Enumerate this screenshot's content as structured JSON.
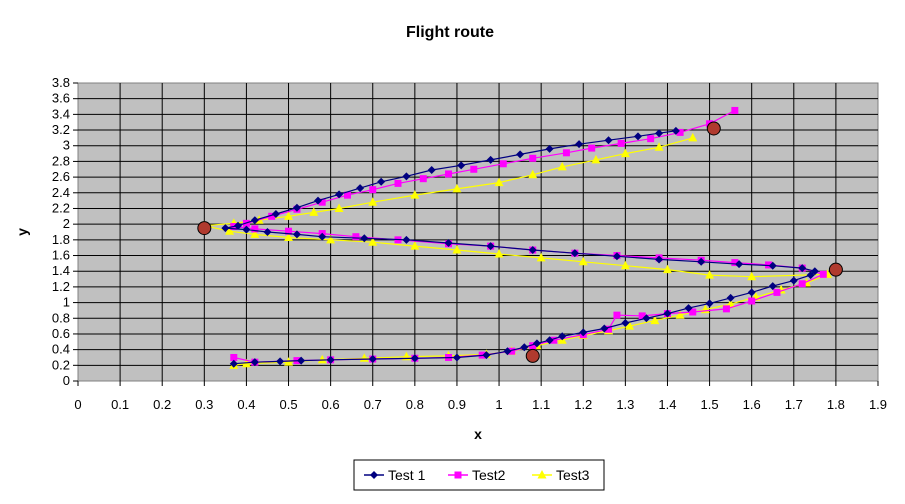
{
  "chart_data": {
    "type": "line",
    "title": "Flight route",
    "xlabel": "x",
    "ylabel": "y",
    "xlim": [
      0,
      1.9
    ],
    "ylim": [
      0,
      3.8
    ],
    "xticks": [
      "0",
      "0.1",
      "0.2",
      "0.3",
      "0.4",
      "0.5",
      "0.6",
      "0.7",
      "0.8",
      "0.9",
      "1",
      "1.1",
      "1.2",
      "1.3",
      "1.4",
      "1.5",
      "1.6",
      "1.7",
      "1.8",
      "1.9"
    ],
    "yticks": [
      "0",
      "0.2",
      "0.4",
      "0.6",
      "0.8",
      "1",
      "1.2",
      "1.4",
      "1.6",
      "1.8",
      "2",
      "2.2",
      "2.4",
      "2.6",
      "2.8",
      "3",
      "3.2",
      "3.4",
      "3.6",
      "3.8"
    ],
    "grid": true,
    "legend_position": "bottom",
    "colors": {
      "plot_background": "#c0c0c0",
      "gridline": "#000000",
      "test1": "#000080",
      "test2": "#ff00ff",
      "test3": "#ffff00",
      "waypoint_fill": "#b03a2e"
    },
    "series": [
      {
        "name": "Test 1",
        "marker": "diamond",
        "x": [
          0.37,
          0.42,
          0.48,
          0.53,
          0.6,
          0.7,
          0.8,
          0.9,
          0.97,
          1.02,
          1.06,
          1.09,
          1.12,
          1.15,
          1.2,
          1.25,
          1.3,
          1.35,
          1.4,
          1.45,
          1.5,
          1.55,
          1.6,
          1.65,
          1.7,
          1.74,
          1.75,
          1.72,
          1.65,
          1.57,
          1.48,
          1.38,
          1.28,
          1.18,
          1.08,
          0.98,
          0.88,
          0.78,
          0.68,
          0.58,
          0.52,
          0.45,
          0.4,
          0.35,
          0.38,
          0.42,
          0.47,
          0.52,
          0.57,
          0.62,
          0.67,
          0.72,
          0.78,
          0.84,
          0.91,
          0.98,
          1.05,
          1.12,
          1.19,
          1.26,
          1.33,
          1.38,
          1.42
        ],
        "y": [
          0.22,
          0.24,
          0.25,
          0.26,
          0.27,
          0.28,
          0.29,
          0.3,
          0.33,
          0.38,
          0.43,
          0.48,
          0.52,
          0.57,
          0.62,
          0.67,
          0.74,
          0.8,
          0.86,
          0.93,
          0.99,
          1.06,
          1.13,
          1.21,
          1.28,
          1.35,
          1.4,
          1.44,
          1.47,
          1.49,
          1.52,
          1.55,
          1.59,
          1.63,
          1.67,
          1.72,
          1.76,
          1.8,
          1.82,
          1.84,
          1.87,
          1.9,
          1.93,
          1.95,
          1.98,
          2.05,
          2.13,
          2.21,
          2.3,
          2.38,
          2.46,
          2.54,
          2.61,
          2.69,
          2.75,
          2.82,
          2.89,
          2.96,
          3.02,
          3.07,
          3.12,
          3.16,
          3.19
        ]
      },
      {
        "name": "Test2",
        "marker": "square",
        "x": [
          0.37,
          0.42,
          0.52,
          0.6,
          0.7,
          0.8,
          0.88,
          0.96,
          1.03,
          1.08,
          1.13,
          1.2,
          1.26,
          1.28,
          1.34,
          1.4,
          1.46,
          1.54,
          1.6,
          1.66,
          1.72,
          1.77,
          1.72,
          1.64,
          1.56,
          1.48,
          1.38,
          1.28,
          1.18,
          1.08,
          0.98,
          0.88,
          0.76,
          0.66,
          0.58,
          0.5,
          0.42,
          0.37,
          0.4,
          0.46,
          0.52,
          0.58,
          0.64,
          0.7,
          0.76,
          0.82,
          0.88,
          0.94,
          1.01,
          1.08,
          1.16,
          1.22,
          1.29,
          1.36,
          1.43,
          1.5,
          1.56
        ],
        "y": [
          0.3,
          0.24,
          0.26,
          0.27,
          0.28,
          0.29,
          0.3,
          0.33,
          0.38,
          0.45,
          0.52,
          0.59,
          0.66,
          0.84,
          0.83,
          0.86,
          0.88,
          0.92,
          1.02,
          1.13,
          1.24,
          1.36,
          1.44,
          1.48,
          1.51,
          1.54,
          1.57,
          1.6,
          1.63,
          1.67,
          1.72,
          1.75,
          1.8,
          1.84,
          1.88,
          1.91,
          1.94,
          1.97,
          2.01,
          2.1,
          2.19,
          2.28,
          2.37,
          2.44,
          2.52,
          2.58,
          2.64,
          2.7,
          2.77,
          2.84,
          2.91,
          2.97,
          3.03,
          3.09,
          3.17,
          3.28,
          3.45
        ]
      },
      {
        "name": "Test3",
        "marker": "triangle",
        "x": [
          0.37,
          0.4,
          0.5,
          0.58,
          0.68,
          0.78,
          0.88,
          0.97,
          1.03,
          1.09,
          1.15,
          1.2,
          1.26,
          1.31,
          1.37,
          1.43,
          1.49,
          1.55,
          1.61,
          1.67,
          1.73,
          1.78,
          1.6,
          1.5,
          1.4,
          1.3,
          1.2,
          1.1,
          1.0,
          0.9,
          0.8,
          0.7,
          0.6,
          0.5,
          0.42,
          0.36,
          0.3,
          0.37,
          0.43,
          0.5,
          0.56,
          0.62,
          0.7,
          0.8,
          0.9,
          1.0,
          1.08,
          1.15,
          1.23,
          1.3,
          1.38,
          1.46
        ],
        "y": [
          0.2,
          0.22,
          0.24,
          0.27,
          0.29,
          0.31,
          0.32,
          0.34,
          0.38,
          0.45,
          0.52,
          0.58,
          0.64,
          0.7,
          0.77,
          0.84,
          0.91,
          0.98,
          1.07,
          1.16,
          1.25,
          1.36,
          1.33,
          1.35,
          1.42,
          1.47,
          1.52,
          1.57,
          1.62,
          1.67,
          1.72,
          1.77,
          1.8,
          1.83,
          1.87,
          1.91,
          1.98,
          2.01,
          2.05,
          2.1,
          2.15,
          2.2,
          2.28,
          2.37,
          2.45,
          2.53,
          2.63,
          2.73,
          2.82,
          2.9,
          2.98,
          3.1
        ]
      }
    ],
    "waypoints": [
      {
        "x": 0.3,
        "y": 1.95
      },
      {
        "x": 1.08,
        "y": 0.32
      },
      {
        "x": 1.8,
        "y": 1.42
      },
      {
        "x": 1.51,
        "y": 3.22
      }
    ]
  }
}
